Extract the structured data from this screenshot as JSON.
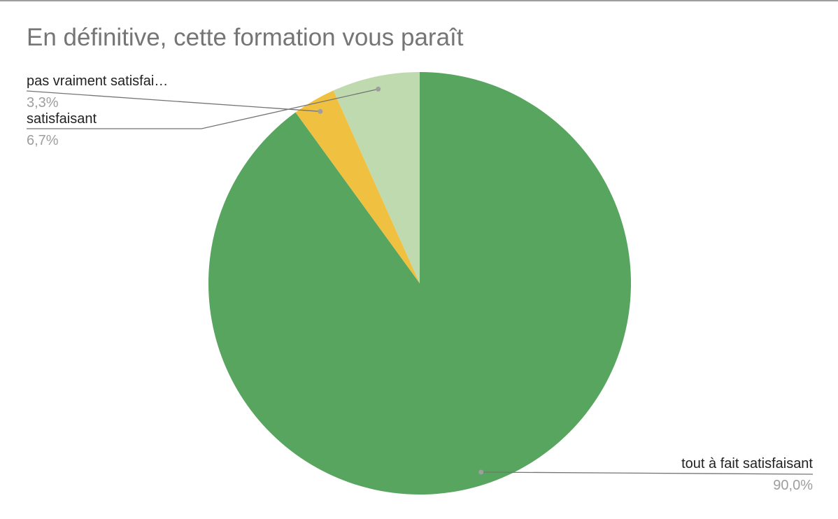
{
  "chart_data": {
    "type": "pie",
    "title": "En définitive, cette formation vous paraît",
    "slices": [
      {
        "label": "tout à fait satisfaisant",
        "value": 90.0,
        "percent_label": "90,0%",
        "color": "#57a55e"
      },
      {
        "label": "pas vraiment satisfai…",
        "value": 3.3,
        "percent_label": "3,3%",
        "color": "#f0c040"
      },
      {
        "label": "satisfaisant",
        "value": 6.7,
        "percent_label": "6,7%",
        "color": "#bfdaae"
      }
    ],
    "legend": "none"
  },
  "colors": {
    "title": "#757575",
    "leader_line": "#757575",
    "percent_text": "#9e9e9e",
    "label_text": "#222222",
    "frame_line": "#9e9e9e"
  }
}
